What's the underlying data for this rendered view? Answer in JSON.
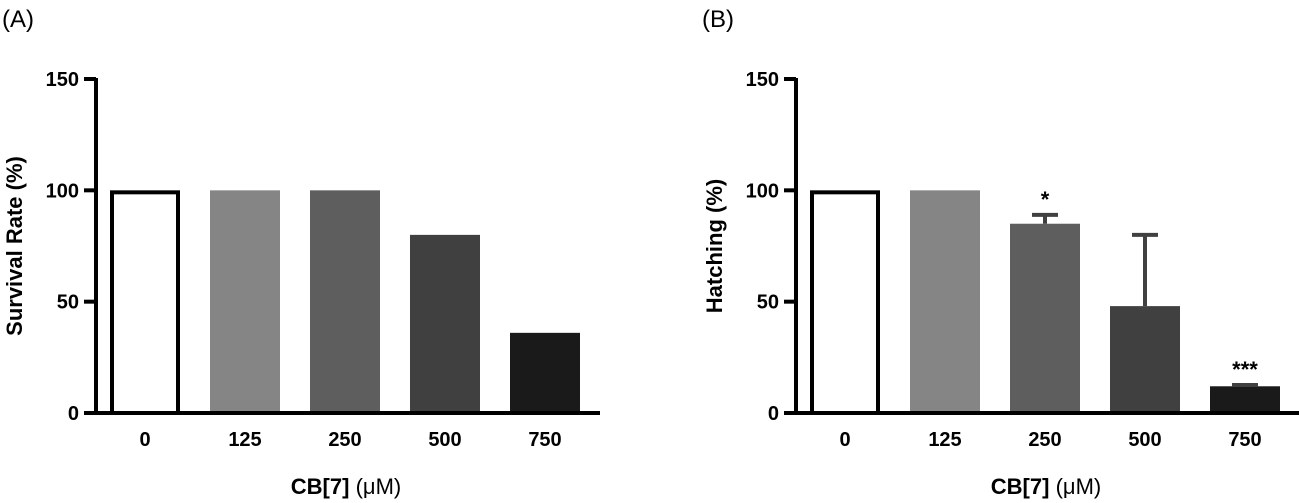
{
  "chart_data": [
    {
      "type": "bar",
      "panel_label": "(A)",
      "categories": [
        "0",
        "125",
        "250",
        "500",
        "750"
      ],
      "values": [
        100,
        100,
        100,
        80,
        36
      ],
      "errors": [
        null,
        null,
        null,
        null,
        null
      ],
      "significance": [
        "",
        "",
        "",
        "",
        ""
      ],
      "colors": [
        "#ffffff",
        "#858585",
        "#5e5e5e",
        "#404040",
        "#1a1a1a"
      ],
      "xlabel": "CB[7]",
      "xlabel_unit": "(μM)",
      "ylabel": "Survival Rate (%)",
      "ylim": [
        0,
        150
      ],
      "yticks": [
        0,
        50,
        100,
        150
      ],
      "grid": false
    },
    {
      "type": "bar",
      "panel_label": "(B)",
      "categories": [
        "0",
        "125",
        "250",
        "500",
        "750"
      ],
      "values": [
        100,
        100,
        85,
        48,
        12
      ],
      "errors": [
        null,
        null,
        4,
        32,
        0.6
      ],
      "significance": [
        "",
        "",
        "*",
        "",
        "***"
      ],
      "colors": [
        "#ffffff",
        "#858585",
        "#5e5e5e",
        "#404040",
        "#1a1a1a"
      ],
      "xlabel": "CB[7]",
      "xlabel_unit": "(μM)",
      "ylabel": "Hatching (%)",
      "ylim": [
        0,
        150
      ],
      "yticks": [
        0,
        50,
        100,
        150
      ],
      "grid": false
    }
  ]
}
